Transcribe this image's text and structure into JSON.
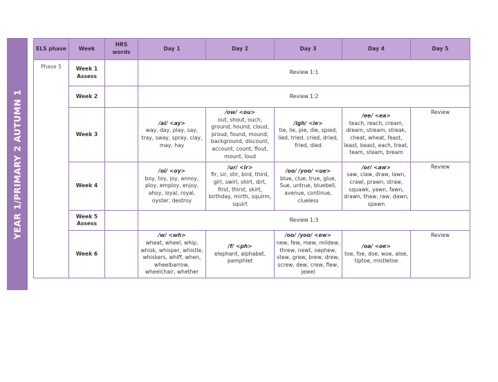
{
  "side_title": "YEAR 1/PRIMARY 2 AUTUMN 1",
  "headers": [
    "ELS phase",
    "Week",
    "HRS words",
    "Day 1",
    "Day 2",
    "Day 3",
    "Day 4",
    "Day 5"
  ],
  "phase": "Phase 5",
  "rows": [
    {
      "week": "Week 1 Assess",
      "review": "Review 1:1"
    },
    {
      "week": "Week 2",
      "review": "Review 1:2"
    },
    {
      "week": "Week 3",
      "days": [
        {
          "g": "/ai/ <ay>",
          "w": "way, day, play, say, tray, sway, spray, clay, may, hay"
        },
        {
          "g": "/ow/ <ou>",
          "w": "out, shout, ouch, ground, hound, cloud, proud, found, mound, background, discount, account, count, flout, mount, loud"
        },
        {
          "g": "/igh/ <ie>",
          "w": "tie, lie, pie, die, spied, lied, tried, cried, dried, fried, died"
        },
        {
          "g": "/ee/ <ea>",
          "w": "teach, reach, cream, dream, stream, streak, cheat, wheat, feast, least, beast, each, treat, team, steam, bream"
        }
      ],
      "day5": "Review"
    },
    {
      "week": "Week 4",
      "days": [
        {
          "g": "/oi/ <oy>",
          "w": "boy, toy, joy, annoy, ploy, employ, enjoy, ahoy, loyal, royal, oyster, destroy"
        },
        {
          "g": "/ur/ <ir>",
          "w": "fir, sir, stir, bird, third, girl, swirl, shirt, dirt, first, thirst, skirt, birthday, mirth, squirm, squirt"
        },
        {
          "g": "/oo/ /yoo/ <ue>",
          "w": "blue, clue, true, glue, Sue, untrue, bluebell, avenue, continue, clueless"
        },
        {
          "g": "/or/ <aw>",
          "w": "saw, claw, draw, lawn, crawl, prawn, straw, squawk, yawn, fawn, drawn, thaw, raw, dawn, spawn"
        }
      ],
      "day5": "Review"
    },
    {
      "week": "Week 5 Assess",
      "review": "Review 1:3"
    },
    {
      "week": "Week 6",
      "days": [
        {
          "g": "/w/ <wh>",
          "w": "wheat, wheel, whip, whisk, whisper, whistle, whiskers, whiff, when, wheelbarrow, wheelchair, whether"
        },
        {
          "g": "/f/ <ph>",
          "w": "elephant, alphabet, pamphlet"
        },
        {
          "g": "/oo/ /yoo/ <ew>",
          "w": "new, few, mew, mildew, threw, newt, nephew, stew, grew, brew, drew, screw, dew, crew, flew, jewel"
        },
        {
          "g": "/oa/ <oe>",
          "w": "toe, foe, doe, woe, aloe, tiptoe, mistletoe"
        }
      ],
      "day5": "Review"
    }
  ]
}
